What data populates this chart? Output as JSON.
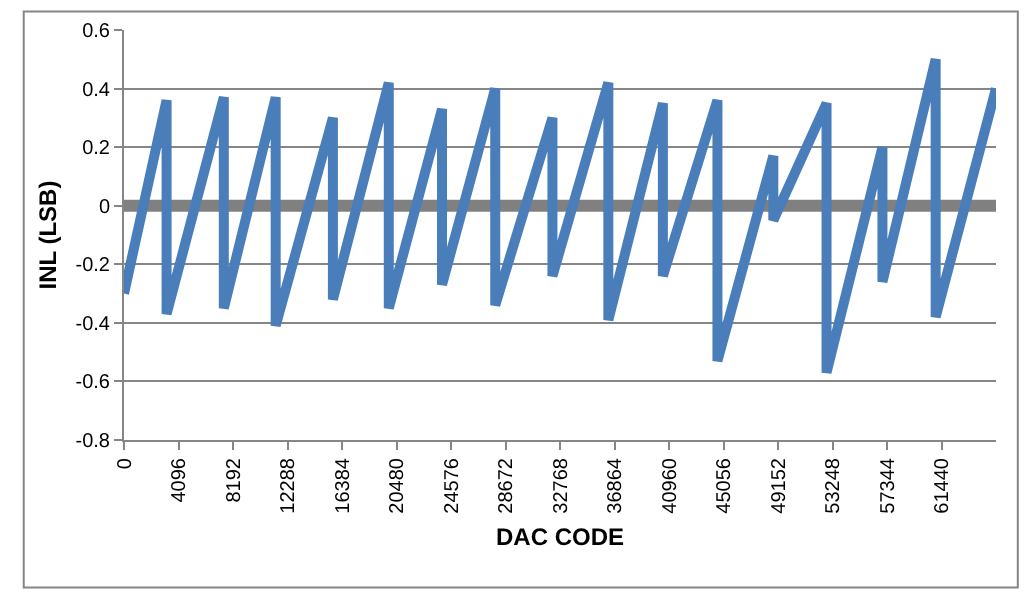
{
  "chart_data": {
    "type": "line",
    "xlabel": "DAC CODE",
    "ylabel": "INL (LSB)",
    "series": [
      {
        "color": "#4a7ebb",
        "x": [
          0,
          3200,
          3200,
          7500,
          7500,
          11400,
          11400,
          15700,
          15700,
          19900,
          19900,
          23900,
          23900,
          27900,
          27900,
          32200,
          32200,
          36400,
          36400,
          40500,
          40500,
          44600,
          44600,
          48800,
          48800,
          52800,
          52800,
          57000,
          57000,
          61000,
          61000,
          65535
        ],
        "values": [
          -0.3,
          0.36,
          -0.37,
          0.37,
          -0.35,
          0.37,
          -0.41,
          0.3,
          -0.32,
          0.42,
          -0.35,
          0.33,
          -0.27,
          0.4,
          -0.34,
          0.3,
          -0.24,
          0.42,
          -0.39,
          0.35,
          -0.24,
          0.36,
          -0.53,
          0.17,
          -0.05,
          0.35,
          -0.57,
          0.2,
          -0.26,
          0.5,
          -0.38,
          0.4
        ]
      }
    ],
    "ref_lines": [
      {
        "axis": "y",
        "value": 0,
        "color": "#808080"
      }
    ],
    "xlim": [
      0,
      65535
    ],
    "xticks": [
      0,
      4096,
      8192,
      12288,
      16384,
      20480,
      24576,
      28672,
      32768,
      36864,
      40960,
      45056,
      49152,
      53248,
      57344,
      61440
    ],
    "ylim": [
      -0.8,
      0.6
    ],
    "yticks": [
      {
        "value": -0.8,
        "label": "-0.8"
      },
      {
        "value": -0.6,
        "label": "-0.6"
      },
      {
        "value": -0.4,
        "label": "-0.4"
      },
      {
        "value": -0.2,
        "label": "-0.2"
      },
      0,
      {
        "value": 0.2,
        "label": "0.2"
      },
      {
        "value": 0.4,
        "label": "0.4"
      },
      {
        "value": 0.6,
        "label": "0.6"
      }
    ],
    "grid": "y",
    "marker": "none",
    "line_style": "solid"
  }
}
